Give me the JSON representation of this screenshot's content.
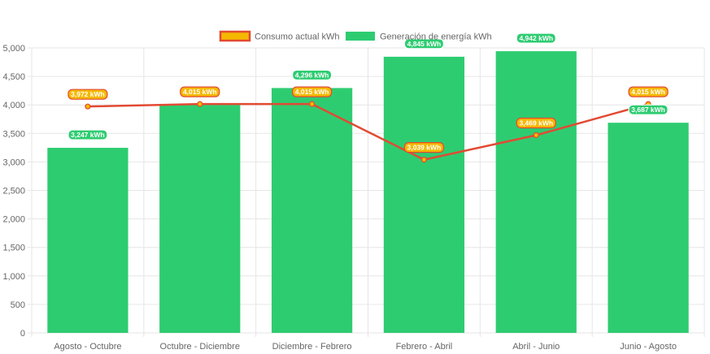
{
  "chart_data": {
    "type": "bar",
    "categories": [
      "Agosto - Octubre",
      "Octubre - Diciembre",
      "Diciembre - Febrero",
      "Febrero - Abril",
      "Abril - Junio",
      "Junio - Agosto"
    ],
    "series": [
      {
        "name": "Consumo actual kWh",
        "type": "line",
        "color": "#e24a33",
        "label_color": "#f5b800",
        "values": [
          3972,
          4015,
          4015,
          3039,
          3469,
          4015
        ],
        "labels": [
          "3,972 kWh",
          "4,015 kWh",
          "4,015 kWh",
          "3,039 kWh",
          "3,469 kWh",
          "4,015 kWh"
        ]
      },
      {
        "name": "Generación de energía kWh",
        "type": "bar",
        "color": "#2ecc71",
        "values": [
          3247,
          4000,
          4296,
          4845,
          4942,
          3687
        ],
        "labels": [
          "3,247 kWh",
          "",
          "4,296 kWh",
          "4,845 kWh",
          "4,942 kWh",
          "3,687 kWh"
        ]
      }
    ],
    "y_ticks": [
      "0",
      "500",
      "1,000",
      "1,500",
      "2,000",
      "2,500",
      "3,000",
      "3,500",
      "4,000",
      "4,500",
      "5,000"
    ],
    "ylim": [
      0,
      5000
    ],
    "grid": true,
    "legend_position": "top"
  }
}
